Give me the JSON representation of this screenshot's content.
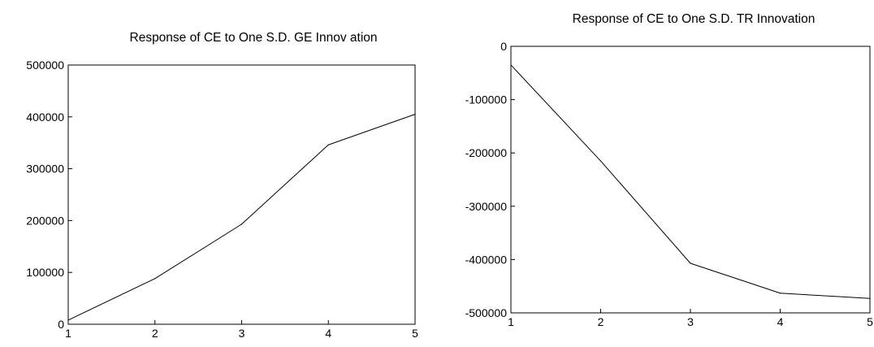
{
  "chart_data": [
    {
      "type": "line",
      "title": "Response of CE to One S.D. GE Innov ation",
      "xlabel": "",
      "ylabel": "",
      "x": [
        1,
        2,
        3,
        4,
        5
      ],
      "xticks": [
        "1",
        "2",
        "3",
        "4",
        "5"
      ],
      "ylim": [
        0,
        500000
      ],
      "yticks": [
        0,
        100000,
        200000,
        300000,
        400000,
        500000
      ],
      "ytick_labels": [
        "0",
        "100000",
        "200000",
        "300000",
        "400000",
        "500000"
      ],
      "series": [
        {
          "values": [
            8000,
            88000,
            193000,
            346000,
            405000
          ]
        }
      ],
      "grid": false,
      "line_color": "#000000"
    },
    {
      "type": "line",
      "title": "Response of CE to One S.D. TR Innovation",
      "xlabel": "",
      "ylabel": "",
      "x": [
        1,
        2,
        3,
        4,
        5
      ],
      "xticks": [
        "1",
        "2",
        "3",
        "4",
        "5"
      ],
      "ylim": [
        -500000,
        0
      ],
      "yticks": [
        -500000,
        -400000,
        -300000,
        -200000,
        -100000,
        0
      ],
      "ytick_labels": [
        "-500000",
        "-400000",
        "-300000",
        "-200000",
        "-100000",
        "0"
      ],
      "series": [
        {
          "values": [
            -35000,
            -215000,
            -407000,
            -463000,
            -473000
          ]
        }
      ],
      "grid": false,
      "line_color": "#000000"
    }
  ]
}
